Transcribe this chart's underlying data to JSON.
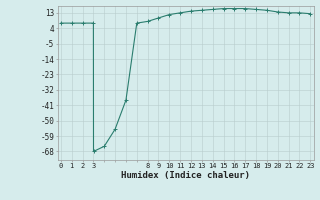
{
  "x": [
    0,
    1,
    2,
    3,
    3.01,
    4,
    5,
    6,
    7,
    8,
    9,
    10,
    11,
    12,
    13,
    14,
    15,
    16,
    17,
    18,
    19,
    20,
    21,
    22,
    23
  ],
  "y": [
    7,
    7,
    7,
    7,
    -68,
    -65,
    -55,
    -38,
    7,
    8,
    10,
    12,
    13,
    14,
    14.5,
    15,
    15.5,
    15.5,
    15.5,
    15,
    14.5,
    13.5,
    13,
    13,
    12.5
  ],
  "yticks": [
    13,
    4,
    -5,
    -14,
    -23,
    -32,
    -41,
    -50,
    -59,
    -68
  ],
  "xtick_positions": [
    0,
    1,
    2,
    3,
    4,
    5,
    6,
    7,
    8,
    9,
    10,
    11,
    12,
    13,
    14,
    15,
    16,
    17,
    18,
    19,
    20,
    21,
    22,
    23
  ],
  "xtick_labels_show": [
    0,
    1,
    2,
    3,
    8,
    9,
    10,
    11,
    12,
    13,
    14,
    15,
    16,
    17,
    18,
    19,
    20,
    21,
    22,
    23
  ],
  "xlabel": "Humidex (Indice chaleur)",
  "line_color": "#2a7d6e",
  "bg_color": "#d6ecec",
  "grid_color_minor": "#c0d8d8",
  "grid_color_major": "#b8cccc",
  "ylim": [
    -73,
    17
  ],
  "xlim": [
    -0.3,
    23.3
  ]
}
